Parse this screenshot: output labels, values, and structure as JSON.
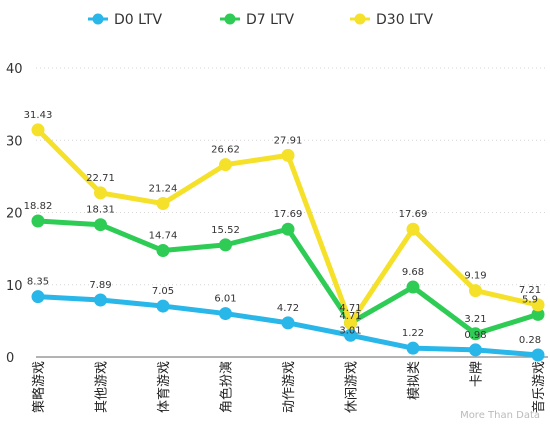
{
  "chart_data": {
    "type": "line",
    "title": "",
    "xlabel": "",
    "ylabel": "",
    "ylim": [
      0,
      40
    ],
    "yticks": [
      0,
      10,
      20,
      30,
      40
    ],
    "grid": true,
    "legend_position": "top",
    "categories": [
      "策略游戏",
      "其他游戏",
      "体育游戏",
      "角色扮演",
      "动作游戏",
      "休闲游戏",
      "模拟类",
      "卡牌",
      "音乐游戏"
    ],
    "series": [
      {
        "name": "D0 LTV",
        "color": "#29b6e8",
        "values": [
          8.35,
          7.89,
          7.05,
          6.01,
          4.72,
          3.01,
          1.22,
          0.98,
          0.28
        ]
      },
      {
        "name": "D7 LTV",
        "color": "#2ecc55",
        "values": [
          18.82,
          18.31,
          14.74,
          15.52,
          17.69,
          4.71,
          9.68,
          3.21,
          5.9
        ]
      },
      {
        "name": "D30 LTV",
        "color": "#f5e02a",
        "values": [
          31.43,
          22.71,
          21.24,
          26.62,
          27.91,
          4.71,
          17.69,
          9.19,
          7.21
        ]
      }
    ]
  },
  "watermark": "More Than Data"
}
